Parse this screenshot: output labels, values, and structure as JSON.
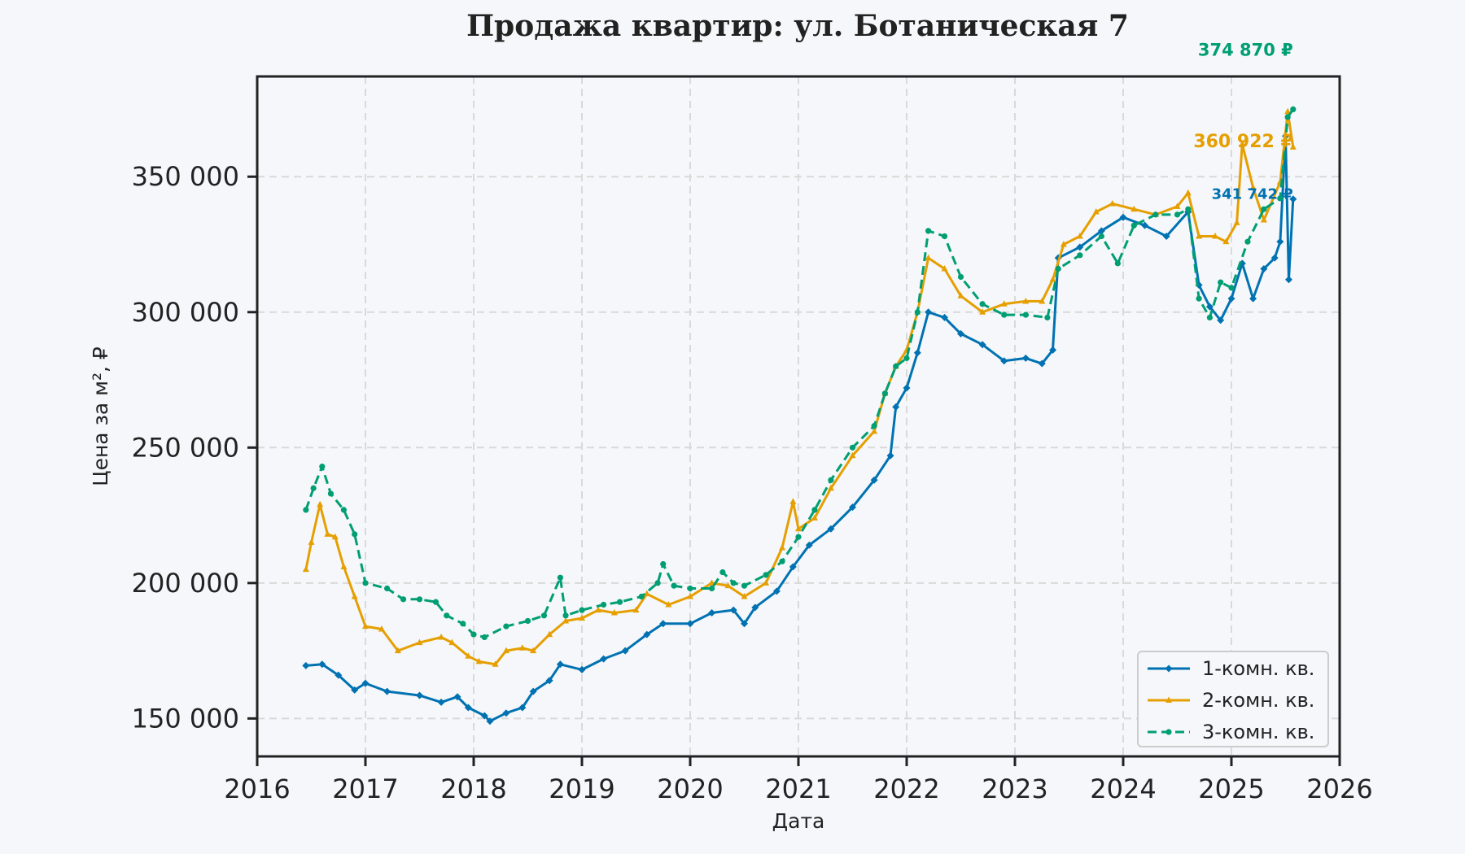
{
  "chart_data": {
    "type": "line",
    "title": "Продажа квартир: ул. Ботаническая 7",
    "xlabel": "Дата",
    "ylabel": "Цена за м², ₽",
    "xlim": [
      2016,
      2026
    ],
    "ylim": [
      136000,
      387000
    ],
    "x_ticks": [
      2016,
      2017,
      2018,
      2019,
      2020,
      2021,
      2022,
      2023,
      2024,
      2025,
      2026
    ],
    "x_tick_labels": [
      "2016",
      "2017",
      "2018",
      "2019",
      "2020",
      "2021",
      "2022",
      "2023",
      "2024",
      "2025",
      "2026"
    ],
    "y_ticks": [
      150000,
      200000,
      250000,
      300000,
      350000
    ],
    "y_tick_labels": [
      "150 000",
      "200 000",
      "250 000",
      "300 000",
      "350 000"
    ],
    "grid": true,
    "legend_position": "bottom-right",
    "series": [
      {
        "name": "1-комн. кв.",
        "color": "#0072b2",
        "dash": false,
        "marker": "diamond",
        "end_label": "341 742 ₽",
        "end_value": 341742,
        "points": [
          [
            2016.45,
            169500
          ],
          [
            2016.6,
            170000
          ],
          [
            2016.75,
            166000
          ],
          [
            2016.9,
            160500
          ],
          [
            2017.0,
            163000
          ],
          [
            2017.2,
            160000
          ],
          [
            2017.5,
            158500
          ],
          [
            2017.7,
            156000
          ],
          [
            2017.85,
            158000
          ],
          [
            2017.95,
            154000
          ],
          [
            2018.1,
            151000
          ],
          [
            2018.15,
            149000
          ],
          [
            2018.3,
            152000
          ],
          [
            2018.45,
            154000
          ],
          [
            2018.55,
            160000
          ],
          [
            2018.7,
            164000
          ],
          [
            2018.8,
            170000
          ],
          [
            2019.0,
            168000
          ],
          [
            2019.2,
            172000
          ],
          [
            2019.4,
            175000
          ],
          [
            2019.6,
            181000
          ],
          [
            2019.75,
            185000
          ],
          [
            2020.0,
            185000
          ],
          [
            2020.2,
            189000
          ],
          [
            2020.4,
            190000
          ],
          [
            2020.5,
            185000
          ],
          [
            2020.6,
            191000
          ],
          [
            2020.8,
            197000
          ],
          [
            2020.95,
            206000
          ],
          [
            2021.1,
            214000
          ],
          [
            2021.3,
            220000
          ],
          [
            2021.5,
            228000
          ],
          [
            2021.7,
            238000
          ],
          [
            2021.85,
            247000
          ],
          [
            2021.9,
            265000
          ],
          [
            2022.0,
            272000
          ],
          [
            2022.1,
            285000
          ],
          [
            2022.2,
            300000
          ],
          [
            2022.35,
            298000
          ],
          [
            2022.5,
            292000
          ],
          [
            2022.7,
            288000
          ],
          [
            2022.9,
            282000
          ],
          [
            2023.1,
            283000
          ],
          [
            2023.25,
            281000
          ],
          [
            2023.35,
            286000
          ],
          [
            2023.4,
            320000
          ],
          [
            2023.6,
            324000
          ],
          [
            2023.8,
            330000
          ],
          [
            2024.0,
            335000
          ],
          [
            2024.2,
            332000
          ],
          [
            2024.4,
            328000
          ],
          [
            2024.6,
            337000
          ],
          [
            2024.7,
            310000
          ],
          [
            2024.8,
            302000
          ],
          [
            2024.9,
            297000
          ],
          [
            2025.0,
            305000
          ],
          [
            2025.1,
            318000
          ],
          [
            2025.2,
            305000
          ],
          [
            2025.3,
            316000
          ],
          [
            2025.4,
            320000
          ],
          [
            2025.45,
            326000
          ],
          [
            2025.5,
            365000
          ],
          [
            2025.53,
            312000
          ],
          [
            2025.57,
            341742
          ]
        ]
      },
      {
        "name": "2-комн. кв.",
        "color": "#e69f00",
        "dash": false,
        "marker": "triangle",
        "end_label": "360 922 ₽",
        "end_value": 360922,
        "points": [
          [
            2016.45,
            205000
          ],
          [
            2016.5,
            215000
          ],
          [
            2016.58,
            229000
          ],
          [
            2016.65,
            218000
          ],
          [
            2016.72,
            217000
          ],
          [
            2016.8,
            206000
          ],
          [
            2016.9,
            195000
          ],
          [
            2017.0,
            184000
          ],
          [
            2017.15,
            183000
          ],
          [
            2017.3,
            175000
          ],
          [
            2017.5,
            178000
          ],
          [
            2017.7,
            180000
          ],
          [
            2017.8,
            178000
          ],
          [
            2017.95,
            173000
          ],
          [
            2018.05,
            171000
          ],
          [
            2018.2,
            170000
          ],
          [
            2018.3,
            175000
          ],
          [
            2018.45,
            176000
          ],
          [
            2018.55,
            175000
          ],
          [
            2018.7,
            181000
          ],
          [
            2018.85,
            186000
          ],
          [
            2019.0,
            187000
          ],
          [
            2019.15,
            190000
          ],
          [
            2019.3,
            189000
          ],
          [
            2019.5,
            190000
          ],
          [
            2019.6,
            196000
          ],
          [
            2019.8,
            192000
          ],
          [
            2020.0,
            195000
          ],
          [
            2020.2,
            200000
          ],
          [
            2020.35,
            199000
          ],
          [
            2020.5,
            195000
          ],
          [
            2020.7,
            200000
          ],
          [
            2020.85,
            213000
          ],
          [
            2020.95,
            230000
          ],
          [
            2021.0,
            220000
          ],
          [
            2021.15,
            224000
          ],
          [
            2021.3,
            235000
          ],
          [
            2021.5,
            247000
          ],
          [
            2021.7,
            256000
          ],
          [
            2021.8,
            270000
          ],
          [
            2021.9,
            280000
          ],
          [
            2022.0,
            286000
          ],
          [
            2022.1,
            300000
          ],
          [
            2022.2,
            320000
          ],
          [
            2022.35,
            316000
          ],
          [
            2022.5,
            306000
          ],
          [
            2022.7,
            300000
          ],
          [
            2022.9,
            303000
          ],
          [
            2023.1,
            304000
          ],
          [
            2023.25,
            304000
          ],
          [
            2023.35,
            312000
          ],
          [
            2023.45,
            325000
          ],
          [
            2023.6,
            328000
          ],
          [
            2023.75,
            337000
          ],
          [
            2023.9,
            340000
          ],
          [
            2024.1,
            338000
          ],
          [
            2024.3,
            336000
          ],
          [
            2024.5,
            339000
          ],
          [
            2024.6,
            344000
          ],
          [
            2024.7,
            328000
          ],
          [
            2024.85,
            328000
          ],
          [
            2024.95,
            326000
          ],
          [
            2025.05,
            333000
          ],
          [
            2025.1,
            362000
          ],
          [
            2025.2,
            346000
          ],
          [
            2025.3,
            334000
          ],
          [
            2025.45,
            348000
          ],
          [
            2025.52,
            374000
          ],
          [
            2025.57,
            360922
          ]
        ]
      },
      {
        "name": "3-комн. кв.",
        "color": "#009e73",
        "dash": true,
        "marker": "circle",
        "end_label": "374 870 ₽",
        "end_value": 374870,
        "points": [
          [
            2016.45,
            227000
          ],
          [
            2016.52,
            235000
          ],
          [
            2016.6,
            243000
          ],
          [
            2016.68,
            233000
          ],
          [
            2016.8,
            227000
          ],
          [
            2016.9,
            218000
          ],
          [
            2017.0,
            200000
          ],
          [
            2017.2,
            198000
          ],
          [
            2017.35,
            194000
          ],
          [
            2017.5,
            194000
          ],
          [
            2017.65,
            193000
          ],
          [
            2017.75,
            188000
          ],
          [
            2017.9,
            185000
          ],
          [
            2018.0,
            181000
          ],
          [
            2018.1,
            180000
          ],
          [
            2018.3,
            184000
          ],
          [
            2018.5,
            186000
          ],
          [
            2018.65,
            188000
          ],
          [
            2018.8,
            202000
          ],
          [
            2018.85,
            188000
          ],
          [
            2019.0,
            190000
          ],
          [
            2019.2,
            192000
          ],
          [
            2019.35,
            193000
          ],
          [
            2019.55,
            195000
          ],
          [
            2019.7,
            200000
          ],
          [
            2019.75,
            207000
          ],
          [
            2019.85,
            199000
          ],
          [
            2020.0,
            198000
          ],
          [
            2020.2,
            198000
          ],
          [
            2020.3,
            204000
          ],
          [
            2020.4,
            200000
          ],
          [
            2020.5,
            199000
          ],
          [
            2020.7,
            203000
          ],
          [
            2020.85,
            208000
          ],
          [
            2021.0,
            217000
          ],
          [
            2021.15,
            227000
          ],
          [
            2021.3,
            238000
          ],
          [
            2021.5,
            250000
          ],
          [
            2021.7,
            258000
          ],
          [
            2021.8,
            270000
          ],
          [
            2021.9,
            280000
          ],
          [
            2022.0,
            283000
          ],
          [
            2022.1,
            300000
          ],
          [
            2022.2,
            330000
          ],
          [
            2022.35,
            328000
          ],
          [
            2022.5,
            313000
          ],
          [
            2022.7,
            303000
          ],
          [
            2022.9,
            299000
          ],
          [
            2023.1,
            299000
          ],
          [
            2023.3,
            298000
          ],
          [
            2023.4,
            316000
          ],
          [
            2023.6,
            321000
          ],
          [
            2023.8,
            328000
          ],
          [
            2023.95,
            318000
          ],
          [
            2024.1,
            332000
          ],
          [
            2024.3,
            336000
          ],
          [
            2024.5,
            336000
          ],
          [
            2024.6,
            338000
          ],
          [
            2024.7,
            305000
          ],
          [
            2024.8,
            298000
          ],
          [
            2024.9,
            311000
          ],
          [
            2025.0,
            309000
          ],
          [
            2025.15,
            326000
          ],
          [
            2025.3,
            338000
          ],
          [
            2025.45,
            342000
          ],
          [
            2025.52,
            372000
          ],
          [
            2025.57,
            374870
          ]
        ]
      }
    ]
  }
}
